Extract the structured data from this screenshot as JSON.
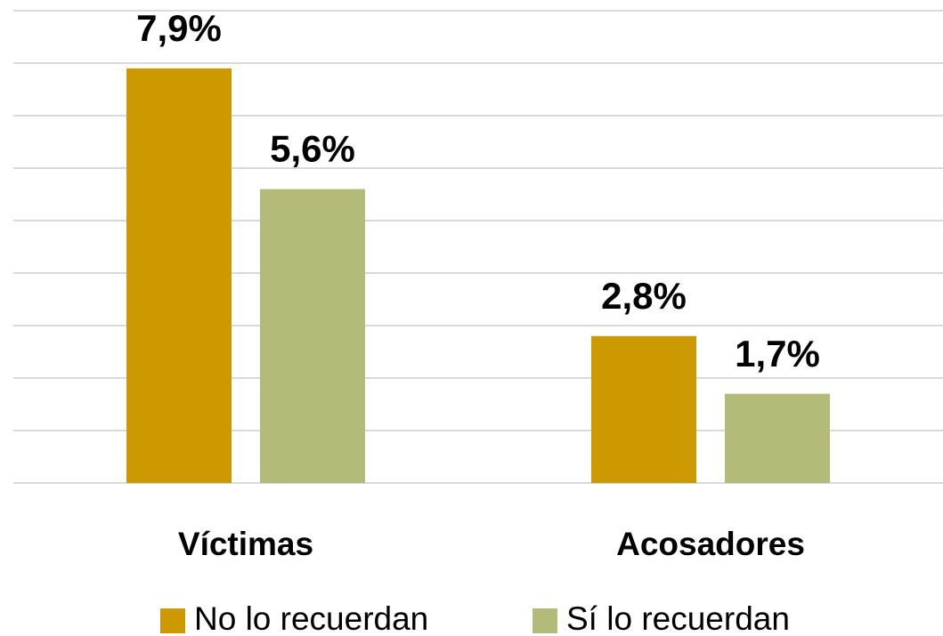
{
  "chart_data": {
    "type": "bar",
    "categories": [
      "Víctimas",
      "Acosadores"
    ],
    "series": [
      {
        "name": "No lo recuerdan",
        "color": "#cc9900",
        "values": [
          7.9,
          2.8
        ],
        "value_labels": [
          "7,9%",
          "2,8%"
        ]
      },
      {
        "name": "Sí lo recuerdan",
        "color": "#b4bb7a",
        "values": [
          5.6,
          1.7
        ],
        "value_labels": [
          "5,6%",
          "1,7%"
        ]
      }
    ],
    "ylim": [
      0,
      9
    ],
    "yticks": [
      0,
      1,
      2,
      3,
      4,
      5,
      6,
      7,
      8,
      9
    ],
    "grid": true,
    "legend": "bottom"
  }
}
